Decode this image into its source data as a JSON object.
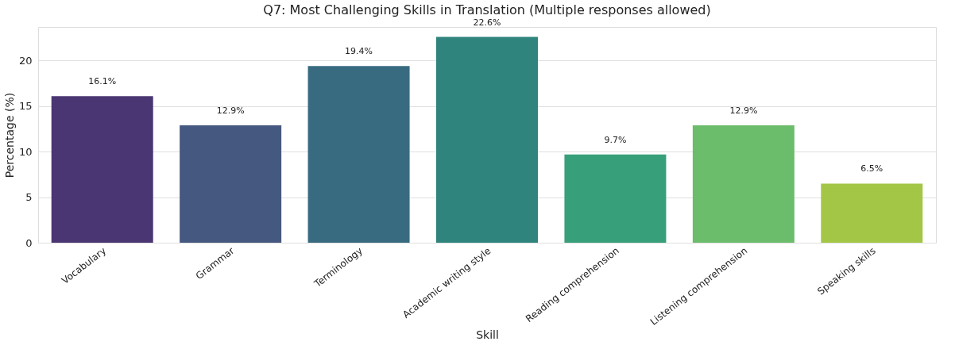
{
  "chart_data": {
    "type": "bar",
    "title": "Q7: Most Challenging Skills in Translation (Multiple responses allowed)",
    "xlabel": "Skill",
    "ylabel": "Percentage (%)",
    "categories": [
      "Vocabulary",
      "Grammar",
      "Terminology",
      "Academic writing style",
      "Reading comprehension",
      "Listening comprehension",
      "Speaking skills"
    ],
    "values": [
      16.1,
      12.9,
      19.4,
      22.6,
      9.7,
      12.9,
      6.5
    ],
    "colors": [
      "#4a3672",
      "#45587f",
      "#386b80",
      "#2f857e",
      "#37a07a",
      "#6bbd6b",
      "#a3c646"
    ],
    "value_labels": [
      "16.1%",
      "12.9%",
      "19.4%",
      "22.6%",
      "9.7%",
      "12.9%",
      "6.5%"
    ],
    "ylim": [
      0,
      23.7
    ],
    "yticks": [
      0,
      5,
      10,
      15,
      20
    ],
    "grid": "y"
  }
}
